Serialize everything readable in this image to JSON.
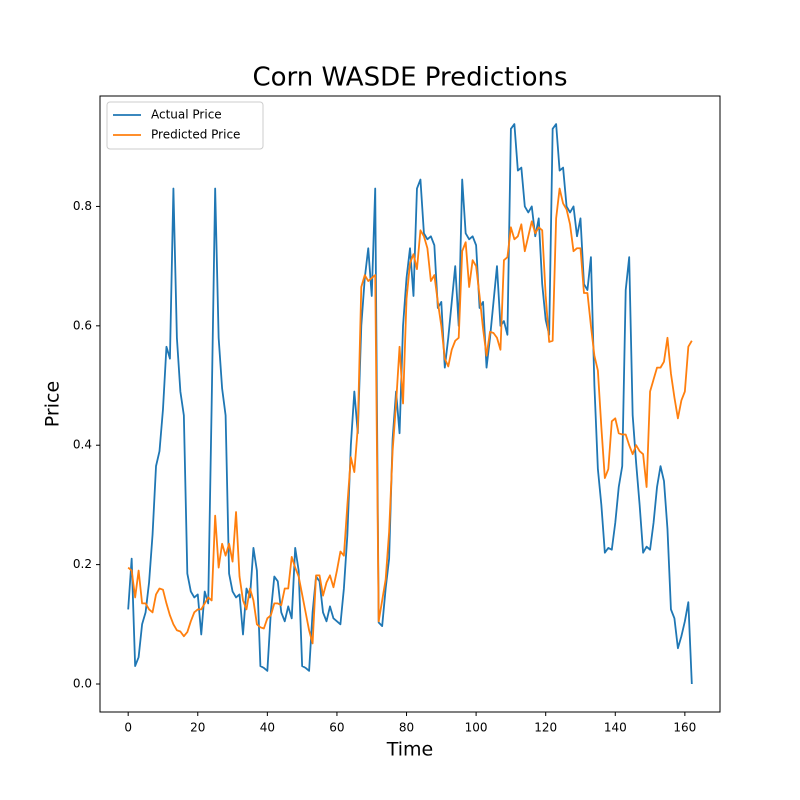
{
  "chart_data": {
    "type": "line",
    "title": "Corn WASDE Predictions",
    "xlabel": "Time",
    "ylabel": "Price",
    "x": [
      0,
      1,
      2,
      3,
      4,
      5,
      6,
      7,
      8,
      9,
      10,
      11,
      12,
      13,
      14,
      15,
      16,
      17,
      18,
      19,
      20,
      21,
      22,
      23,
      24,
      25,
      26,
      27,
      28,
      29,
      30,
      31,
      32,
      33,
      34,
      35,
      36,
      37,
      38,
      39,
      40,
      41,
      42,
      43,
      44,
      45,
      46,
      47,
      48,
      49,
      50,
      51,
      52,
      53,
      54,
      55,
      56,
      57,
      58,
      59,
      60,
      61,
      62,
      63,
      64,
      65,
      66,
      67,
      68,
      69,
      70,
      71,
      72,
      73,
      74,
      75,
      76,
      77,
      78,
      79,
      80,
      81,
      82,
      83,
      84,
      85,
      86,
      87,
      88,
      89,
      90,
      91,
      92,
      93,
      94,
      95,
      96,
      97,
      98,
      99,
      100,
      101,
      102,
      103,
      104,
      105,
      106,
      107,
      108,
      109,
      110,
      111,
      112,
      113,
      114,
      115,
      116,
      117,
      118,
      119,
      120,
      121,
      122,
      123,
      124,
      125,
      126,
      127,
      128,
      129,
      130,
      131,
      132,
      133,
      134,
      135,
      136,
      137,
      138,
      139,
      140,
      141,
      142,
      143,
      144,
      145,
      146,
      147,
      148,
      149,
      150,
      151,
      152,
      153,
      154,
      155,
      156,
      157,
      158,
      159,
      160,
      161,
      162
    ],
    "series": [
      {
        "name": "Actual Price",
        "color": "#1f77b4",
        "values": [
          0.125,
          0.21,
          0.03,
          0.045,
          0.1,
          0.12,
          0.17,
          0.25,
          0.365,
          0.39,
          0.46,
          0.565,
          0.545,
          0.83,
          0.58,
          0.49,
          0.45,
          0.185,
          0.155,
          0.145,
          0.15,
          0.083,
          0.155,
          0.135,
          0.47,
          0.83,
          0.58,
          0.495,
          0.45,
          0.185,
          0.155,
          0.145,
          0.15,
          0.083,
          0.16,
          0.145,
          0.228,
          0.19,
          0.03,
          0.027,
          0.022,
          0.12,
          0.18,
          0.172,
          0.12,
          0.105,
          0.13,
          0.11,
          0.228,
          0.19,
          0.03,
          0.027,
          0.022,
          0.12,
          0.18,
          0.172,
          0.12,
          0.105,
          0.13,
          0.11,
          0.105,
          0.1,
          0.16,
          0.25,
          0.4,
          0.49,
          0.42,
          0.6,
          0.68,
          0.73,
          0.65,
          0.83,
          0.103,
          0.097,
          0.16,
          0.21,
          0.41,
          0.49,
          0.42,
          0.6,
          0.68,
          0.73,
          0.65,
          0.83,
          0.845,
          0.755,
          0.745,
          0.75,
          0.735,
          0.63,
          0.64,
          0.53,
          0.58,
          0.64,
          0.7,
          0.6,
          0.845,
          0.755,
          0.745,
          0.75,
          0.735,
          0.63,
          0.64,
          0.53,
          0.58,
          0.64,
          0.7,
          0.6,
          0.608,
          0.585,
          0.93,
          0.938,
          0.86,
          0.865,
          0.8,
          0.79,
          0.8,
          0.75,
          0.78,
          0.67,
          0.61,
          0.585,
          0.93,
          0.938,
          0.86,
          0.865,
          0.8,
          0.79,
          0.8,
          0.75,
          0.78,
          0.67,
          0.66,
          0.715,
          0.5,
          0.36,
          0.3,
          0.22,
          0.228,
          0.225,
          0.27,
          0.33,
          0.365,
          0.66,
          0.715,
          0.45,
          0.37,
          0.3,
          0.22,
          0.23,
          0.225,
          0.27,
          0.33,
          0.365,
          0.34,
          0.26,
          0.125,
          0.11,
          0.06,
          0.08,
          0.105,
          0.137,
          0.0
        ]
      },
      {
        "name": "Predicted Price",
        "color": "#ff7f0e",
        "values": [
          0.195,
          0.19,
          0.145,
          0.19,
          0.135,
          0.135,
          0.125,
          0.12,
          0.15,
          0.16,
          0.158,
          0.135,
          0.115,
          0.1,
          0.09,
          0.088,
          0.08,
          0.087,
          0.105,
          0.12,
          0.125,
          0.125,
          0.135,
          0.145,
          0.14,
          0.282,
          0.195,
          0.235,
          0.215,
          0.235,
          0.205,
          0.288,
          0.18,
          0.14,
          0.125,
          0.16,
          0.14,
          0.1,
          0.095,
          0.093,
          0.11,
          0.115,
          0.135,
          0.135,
          0.132,
          0.16,
          0.16,
          0.213,
          0.195,
          0.18,
          0.15,
          0.12,
          0.09,
          0.068,
          0.182,
          0.182,
          0.148,
          0.17,
          0.182,
          0.162,
          0.19,
          0.222,
          0.215,
          0.3,
          0.38,
          0.355,
          0.43,
          0.665,
          0.685,
          0.675,
          0.68,
          0.685,
          0.105,
          0.14,
          0.175,
          0.255,
          0.39,
          0.47,
          0.565,
          0.47,
          0.645,
          0.705,
          0.72,
          0.695,
          0.76,
          0.75,
          0.73,
          0.675,
          0.685,
          0.64,
          0.6,
          0.545,
          0.532,
          0.56,
          0.575,
          0.58,
          0.725,
          0.74,
          0.665,
          0.71,
          0.7,
          0.65,
          0.595,
          0.55,
          0.59,
          0.588,
          0.58,
          0.56,
          0.71,
          0.715,
          0.765,
          0.745,
          0.75,
          0.77,
          0.725,
          0.75,
          0.775,
          0.755,
          0.765,
          0.76,
          0.65,
          0.573,
          0.575,
          0.78,
          0.83,
          0.805,
          0.795,
          0.77,
          0.725,
          0.73,
          0.73,
          0.655,
          0.655,
          0.6,
          0.55,
          0.525,
          0.43,
          0.345,
          0.36,
          0.44,
          0.445,
          0.42,
          0.418,
          0.418,
          0.4,
          0.385,
          0.4,
          0.39,
          0.385,
          0.33,
          0.49,
          0.51,
          0.53,
          0.53,
          0.54,
          0.58,
          0.52,
          0.48,
          0.445,
          0.475,
          0.49,
          0.565,
          0.575
        ]
      }
    ],
    "xlim": [
      -8.1,
      170.1
    ],
    "ylim": [
      -0.0469,
      0.985
    ],
    "xticks": [
      0,
      20,
      40,
      60,
      80,
      100,
      120,
      140,
      160
    ],
    "yticks": [
      {
        "value": 0,
        "label": "0.0"
      },
      0.2,
      0.4,
      0.6,
      0.8
    ],
    "legend": "upper left",
    "grid": false
  }
}
